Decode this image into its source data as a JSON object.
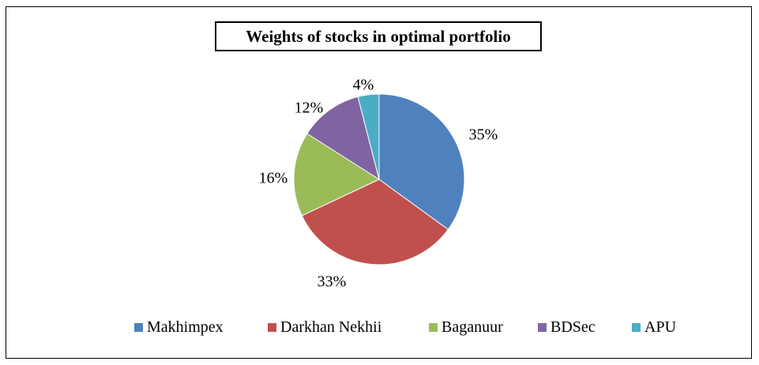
{
  "chart_data": {
    "type": "pie",
    "title": "Weights of stocks in optimal portfolio",
    "slices": [
      {
        "name": "Makhimpex",
        "value": 35,
        "label": "35%",
        "color": "#4F81BD"
      },
      {
        "name": "Darkhan Nekhii",
        "value": 33,
        "label": "33%",
        "color": "#C0504D"
      },
      {
        "name": "Baganuur",
        "value": 16,
        "label": "16%",
        "color": "#9BBB59"
      },
      {
        "name": "BDSec",
        "value": 12,
        "label": "12%",
        "color": "#8064A2"
      },
      {
        "name": "APU",
        "value": 4,
        "label": "4%",
        "color": "#4BACC6"
      }
    ],
    "legend_position": "bottom"
  }
}
